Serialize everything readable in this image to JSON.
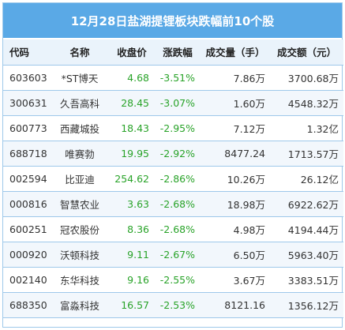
{
  "title": "12月28日盐湖提锂板块跌幅前10个股",
  "headers": {
    "code": "代码",
    "name": "名称",
    "price": "收盘价",
    "change": "涨跌幅",
    "volume": "成交量（手）",
    "amount": "成交额（元）"
  },
  "colors": {
    "header_bg": "#5aa9e6",
    "down": "#29a329",
    "border": "#9ec8ea"
  },
  "rows": [
    {
      "code": "603603",
      "name": "*ST博天",
      "price": "4.68",
      "change": "-3.51%",
      "volume": "7.86万",
      "amount": "3700.68万"
    },
    {
      "code": "300631",
      "name": "久吾高科",
      "price": "28.45",
      "change": "-3.07%",
      "volume": "1.60万",
      "amount": "4548.32万"
    },
    {
      "code": "600773",
      "name": "西藏城投",
      "price": "18.43",
      "change": "-2.95%",
      "volume": "7.12万",
      "amount": "1.32亿"
    },
    {
      "code": "688718",
      "name": "唯赛勃",
      "price": "19.95",
      "change": "-2.92%",
      "volume": "8477.24",
      "amount": "1713.57万"
    },
    {
      "code": "002594",
      "name": "比亚迪",
      "price": "254.62",
      "change": "-2.86%",
      "volume": "10.26万",
      "amount": "26.12亿"
    },
    {
      "code": "000816",
      "name": "智慧农业",
      "price": "3.63",
      "change": "-2.68%",
      "volume": "18.98万",
      "amount": "6922.62万"
    },
    {
      "code": "600251",
      "name": "冠农股份",
      "price": "8.36",
      "change": "-2.68%",
      "volume": "4.98万",
      "amount": "4194.44万"
    },
    {
      "code": "000920",
      "name": "沃顿科技",
      "price": "9.11",
      "change": "-2.67%",
      "volume": "6.50万",
      "amount": "5963.40万"
    },
    {
      "code": "002140",
      "name": "东华科技",
      "price": "9.16",
      "change": "-2.55%",
      "volume": "3.67万",
      "amount": "3383.51万"
    },
    {
      "code": "688350",
      "name": "富淼科技",
      "price": "16.57",
      "change": "-2.53%",
      "volume": "8121.16",
      "amount": "1356.12万"
    }
  ]
}
